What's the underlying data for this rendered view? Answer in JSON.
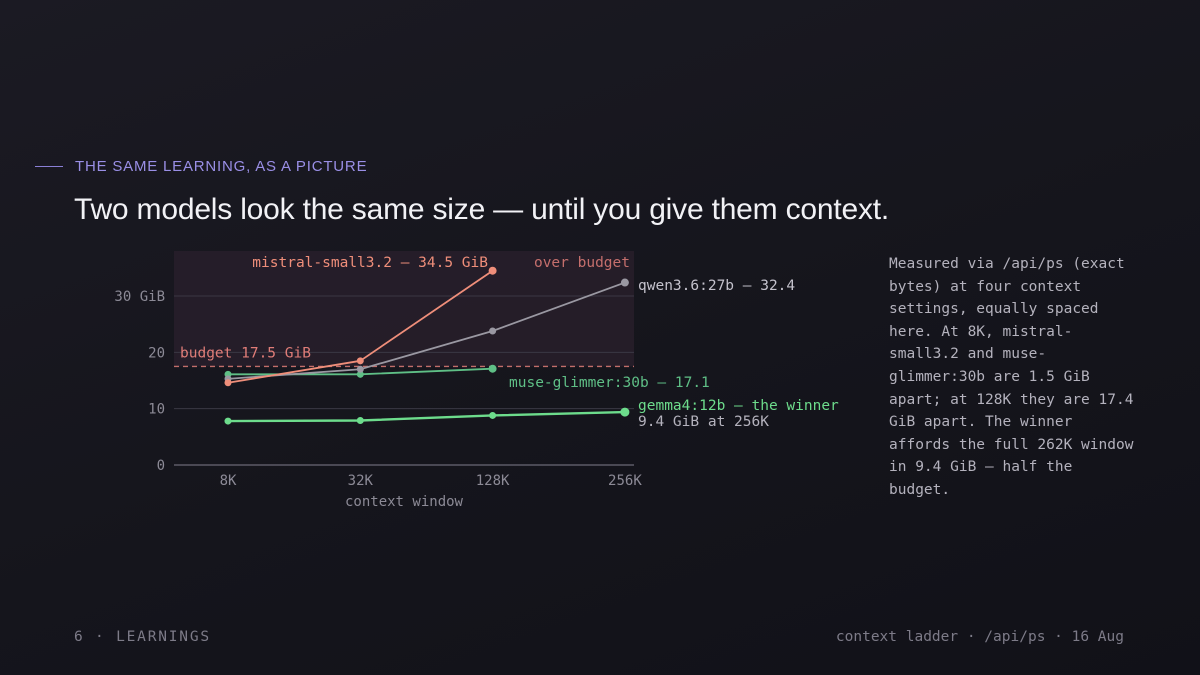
{
  "eyebrow": "THE SAME LEARNING, AS A PICTURE",
  "title": "Two models look the same size — until you give them context.",
  "side_note": "Measured via /api/ps (exact bytes) at four context settings, equally spaced here. At 8K, mistral-small3.2 and muse-glimmer:30b are 1.5 GiB apart; at 128K they are 17.4 GiB apart. The winner affords the full 262K window in 9.4 GiB — half the budget.",
  "footer": {
    "left": "6 · LEARNINGS",
    "right": "context ladder · /api/ps · 16 Aug"
  },
  "colors": {
    "mistral": "#ef8e7a",
    "qwen": "#9a98a2",
    "muse": "#5fbf86",
    "gemma": "#6ddc8c",
    "budget": "#e07d78",
    "over_budget_shade": "#271e2a",
    "accent": "#9a8fe6"
  },
  "chart_data": {
    "type": "line",
    "categories": [
      "8K",
      "32K",
      "128K",
      "256K"
    ],
    "xlabel": "context window",
    "ylim": [
      0,
      38
    ],
    "y_ticks": [
      {
        "value": 0,
        "label": "0"
      },
      {
        "value": 10,
        "label": "10"
      },
      {
        "value": 20,
        "label": "20"
      },
      {
        "value": 30,
        "label": "30 GiB"
      }
    ],
    "budget": {
      "value": 17.5,
      "label": "budget 17.5 GiB"
    },
    "over_budget_label": "over budget",
    "series": [
      {
        "key": "mistral",
        "name": "mistral-small3.2",
        "values": [
          14.6,
          18.5,
          34.5,
          null
        ],
        "end_label": "mistral-small3.2 — 34.5 GiB"
      },
      {
        "key": "qwen",
        "name": "qwen3.6:27b",
        "values": [
          15.3,
          17.0,
          23.8,
          32.4
        ],
        "end_label": "qwen3.6:27b — 32.4"
      },
      {
        "key": "muse",
        "name": "muse-glimmer:30b",
        "values": [
          16.1,
          16.1,
          17.1,
          null
        ],
        "end_label": "muse-glimmer:30b — 17.1"
      },
      {
        "key": "gemma",
        "name": "gemma4:12b",
        "values": [
          7.8,
          7.9,
          8.8,
          9.4
        ],
        "end_label": "gemma4:12b — the winner",
        "end_sublabel": "9.4 GiB at 256K"
      }
    ]
  }
}
